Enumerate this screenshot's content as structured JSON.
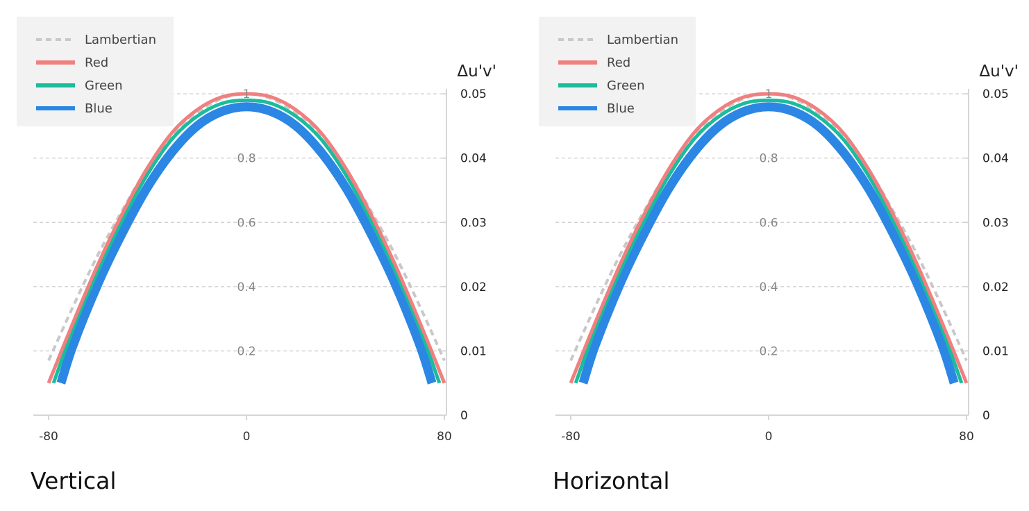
{
  "colors": {
    "lambertian": "#c8c8c8",
    "red": "#f08080",
    "green": "#1abc9c",
    "blue": "#2b87e3"
  },
  "chart_data": [
    {
      "type": "line",
      "title": "Vertical",
      "xlabel": "",
      "ylabel_left": "",
      "ylabel_right": "Δu'v'",
      "xlim": [
        -80,
        80
      ],
      "ylim_left": [
        0,
        1.05
      ],
      "ylim_right": [
        0,
        0.0525
      ],
      "x_ticks": [
        "-80",
        "0",
        "80"
      ],
      "y_left_ticks": [
        "0.2",
        "0.4",
        "0.6",
        "0.8",
        "1"
      ],
      "y_right_ticks": [
        "0",
        "0.01",
        "0.02",
        "0.03",
        "0.04",
        "0.05"
      ],
      "grid": true,
      "legend_position": "top-left",
      "series": [
        {
          "name": "Lambertian",
          "style": "dashed",
          "color": "#c8c8c8",
          "x": [
            -80,
            -70,
            -60,
            -50,
            -40,
            -30,
            -20,
            -10,
            0,
            10,
            20,
            30,
            40,
            50,
            60,
            70,
            80
          ],
          "y": [
            0.17,
            0.34,
            0.5,
            0.64,
            0.77,
            0.87,
            0.94,
            0.985,
            1.0,
            0.985,
            0.94,
            0.87,
            0.77,
            0.64,
            0.5,
            0.34,
            0.17
          ]
        },
        {
          "name": "Red",
          "style": "solid",
          "color": "#f08080",
          "x": [
            -80,
            -70,
            -60,
            -50,
            -40,
            -30,
            -20,
            -10,
            0,
            10,
            20,
            30,
            40,
            50,
            60,
            70,
            80
          ],
          "y": [
            0.1,
            0.29,
            0.47,
            0.63,
            0.77,
            0.88,
            0.95,
            0.99,
            1.0,
            0.99,
            0.95,
            0.88,
            0.77,
            0.63,
            0.47,
            0.29,
            0.1
          ]
        },
        {
          "name": "Green",
          "style": "solid",
          "color": "#1abc9c",
          "x": [
            -78,
            -70,
            -60,
            -50,
            -40,
            -30,
            -20,
            -10,
            0,
            10,
            20,
            30,
            40,
            50,
            60,
            70,
            78
          ],
          "y": [
            0.1,
            0.27,
            0.45,
            0.61,
            0.75,
            0.86,
            0.93,
            0.97,
            0.98,
            0.97,
            0.93,
            0.86,
            0.75,
            0.61,
            0.45,
            0.27,
            0.1
          ]
        },
        {
          "name": "Blue",
          "style": "solid",
          "color": "#2b87e3",
          "x": [
            -75,
            -70,
            -60,
            -50,
            -40,
            -30,
            -20,
            -10,
            0,
            10,
            20,
            30,
            40,
            50,
            60,
            70,
            75
          ],
          "y": [
            0.1,
            0.22,
            0.41,
            0.57,
            0.71,
            0.82,
            0.9,
            0.945,
            0.96,
            0.945,
            0.9,
            0.82,
            0.71,
            0.57,
            0.41,
            0.22,
            0.1
          ]
        }
      ]
    },
    {
      "type": "line",
      "title": "Horizontal",
      "xlabel": "",
      "ylabel_left": "",
      "ylabel_right": "Δu'v'",
      "xlim": [
        -80,
        80
      ],
      "ylim_left": [
        0,
        1.05
      ],
      "ylim_right": [
        0,
        0.0525
      ],
      "x_ticks": [
        "-80",
        "0",
        "80"
      ],
      "y_left_ticks": [
        "0.2",
        "0.4",
        "0.6",
        "0.8",
        "1"
      ],
      "y_right_ticks": [
        "0",
        "0.01",
        "0.02",
        "0.03",
        "0.04",
        "0.05"
      ],
      "grid": true,
      "legend_position": "top-left",
      "series": [
        {
          "name": "Lambertian",
          "style": "dashed",
          "color": "#c8c8c8",
          "x": [
            -80,
            -70,
            -60,
            -50,
            -40,
            -30,
            -20,
            -10,
            0,
            10,
            20,
            30,
            40,
            50,
            60,
            70,
            80
          ],
          "y": [
            0.17,
            0.34,
            0.5,
            0.64,
            0.77,
            0.87,
            0.94,
            0.985,
            1.0,
            0.985,
            0.94,
            0.87,
            0.77,
            0.64,
            0.5,
            0.34,
            0.17
          ]
        },
        {
          "name": "Red",
          "style": "solid",
          "color": "#f08080",
          "x": [
            -80,
            -70,
            -60,
            -50,
            -40,
            -30,
            -20,
            -10,
            0,
            10,
            20,
            30,
            40,
            50,
            60,
            70,
            80
          ],
          "y": [
            0.1,
            0.29,
            0.47,
            0.63,
            0.77,
            0.88,
            0.95,
            0.99,
            1.0,
            0.99,
            0.95,
            0.88,
            0.77,
            0.63,
            0.47,
            0.29,
            0.1
          ]
        },
        {
          "name": "Green",
          "style": "solid",
          "color": "#1abc9c",
          "x": [
            -78,
            -70,
            -60,
            -50,
            -40,
            -30,
            -20,
            -10,
            0,
            10,
            20,
            30,
            40,
            50,
            60,
            70,
            78
          ],
          "y": [
            0.1,
            0.27,
            0.45,
            0.61,
            0.75,
            0.86,
            0.93,
            0.97,
            0.98,
            0.97,
            0.93,
            0.86,
            0.75,
            0.61,
            0.45,
            0.27,
            0.1
          ]
        },
        {
          "name": "Blue",
          "style": "solid",
          "color": "#2b87e3",
          "x": [
            -75,
            -70,
            -60,
            -50,
            -40,
            -30,
            -20,
            -10,
            0,
            10,
            20,
            30,
            40,
            50,
            60,
            70,
            75
          ],
          "y": [
            0.1,
            0.22,
            0.41,
            0.57,
            0.71,
            0.82,
            0.9,
            0.945,
            0.96,
            0.945,
            0.9,
            0.82,
            0.71,
            0.57,
            0.41,
            0.22,
            0.1
          ]
        }
      ]
    }
  ]
}
